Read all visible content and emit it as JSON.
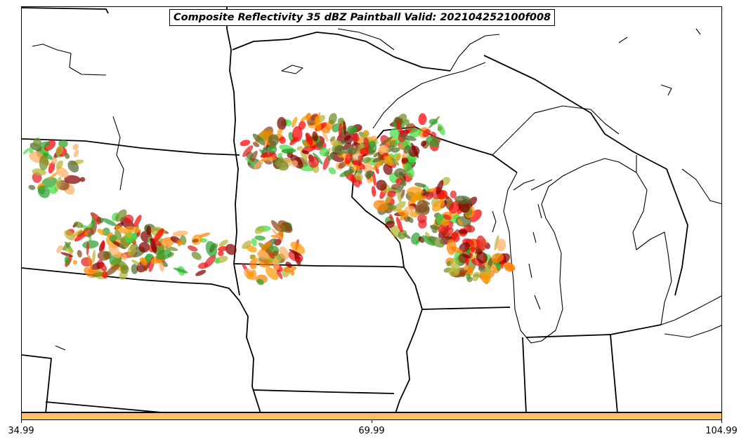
{
  "title": "Composite Reflectivity 35 dBZ Paintball Valid: 202104252100f008",
  "colors": {
    "colorbar_fill": "#ffc266",
    "paint": [
      "#e41a1c",
      "#ff0000",
      "#ff7f00",
      "#ff9900",
      "#fdae61",
      "#2ca02c",
      "#44dd44",
      "#6b8e23",
      "#8b4513",
      "#800000",
      "#b5b535",
      "#556b2f"
    ]
  },
  "colorbar": {
    "ticks": [
      "34.99",
      "69.99",
      "104.99"
    ]
  }
}
